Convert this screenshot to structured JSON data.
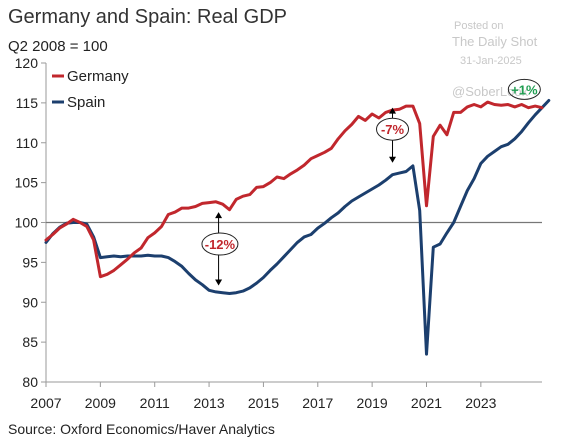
{
  "colors": {
    "germany": "#c1272d",
    "spain": "#1c3f6e",
    "axis": "#9a9a9a",
    "baseline": "#777777",
    "annotation_green": "#1e9e50",
    "annotation_red": "#c1272d",
    "annotation_black": "#000000"
  },
  "watermark": {
    "posted": "Posted on",
    "publisher": "The Daily Shot",
    "date": "31-Jan-2025",
    "handle": "@SoberLook"
  },
  "source": "Source: Oxford Economics/Haver Analytics",
  "chart_data": {
    "type": "line",
    "title": "Germany and Spain: Real GDP",
    "subtitle": "Q2 2008 = 100",
    "xlim": [
      2007.0,
      2025.25
    ],
    "ylim": [
      80,
      120
    ],
    "x_ticks": [
      2007,
      2009,
      2011,
      2013,
      2015,
      2017,
      2019,
      2021,
      2023
    ],
    "x_tick_labels": [
      "2007",
      "2009",
      "2011",
      "2013",
      "2015",
      "2017",
      "2019",
      "2021",
      "2023"
    ],
    "y_ticks": [
      80,
      85,
      90,
      95,
      100,
      105,
      110,
      115,
      120
    ],
    "y_tick_labels": [
      "80",
      "85",
      "90",
      "95",
      "100",
      "105",
      "110",
      "115",
      "120"
    ],
    "reference_line": 100,
    "grid": false,
    "legend_position": "top-left",
    "x_start": 2007.0,
    "x_step": 0.25,
    "series": [
      {
        "name": "Germany",
        "color": "#c1272d",
        "values": [
          97.8,
          98.5,
          99.3,
          99.8,
          100.4,
          100.0,
          99.5,
          97.8,
          93.2,
          93.5,
          94.0,
          94.7,
          95.4,
          96.2,
          96.8,
          98.1,
          98.7,
          99.5,
          101.0,
          101.3,
          101.8,
          101.8,
          102.0,
          102.4,
          102.5,
          102.6,
          102.3,
          101.6,
          102.9,
          103.3,
          103.5,
          104.4,
          104.5,
          105.0,
          105.7,
          105.5,
          106.1,
          106.6,
          107.2,
          108.0,
          108.4,
          108.8,
          109.3,
          110.5,
          111.5,
          112.3,
          113.3,
          112.8,
          113.6,
          113.1,
          113.8,
          114.1,
          114.2,
          114.6,
          114.6,
          112.4,
          102.1,
          110.8,
          112.2,
          111.0,
          113.8,
          113.8,
          114.5,
          114.8,
          114.5,
          115.1,
          114.8,
          114.7,
          114.8,
          114.5,
          114.8,
          114.4,
          114.6,
          114.4
        ],
        "annotation": {
          "text": "-7%",
          "x": 2019.75,
          "y": 111.7
        }
      },
      {
        "name": "Spain",
        "color": "#1c3f6e",
        "values": [
          97.5,
          98.6,
          99.4,
          99.9,
          100.0,
          100.0,
          99.8,
          98.2,
          95.6,
          95.7,
          95.8,
          95.7,
          95.8,
          95.8,
          95.8,
          95.9,
          95.8,
          95.8,
          95.6,
          95.1,
          94.5,
          93.6,
          92.8,
          92.2,
          91.5,
          91.3,
          91.2,
          91.1,
          91.2,
          91.4,
          91.8,
          92.4,
          93.1,
          94.0,
          94.8,
          95.7,
          96.6,
          97.5,
          98.2,
          98.5,
          99.3,
          99.9,
          100.6,
          101.2,
          102.0,
          102.7,
          103.2,
          103.7,
          104.2,
          104.7,
          105.3,
          106.0,
          106.2,
          106.4,
          107.1,
          101.5,
          83.5,
          96.9,
          97.3,
          98.7,
          100.0,
          102.0,
          104.0,
          105.5,
          107.4,
          108.3,
          108.9,
          109.5,
          109.8,
          110.5,
          111.4,
          112.5,
          113.5,
          114.4,
          115.3
        ],
        "annotation": {
          "text": "+1%",
          "x": 2024.6,
          "y": 116.7
        }
      }
    ],
    "spain_drop_annotation": {
      "text": "-12%",
      "x": 2013.4,
      "y": 97.3
    }
  }
}
